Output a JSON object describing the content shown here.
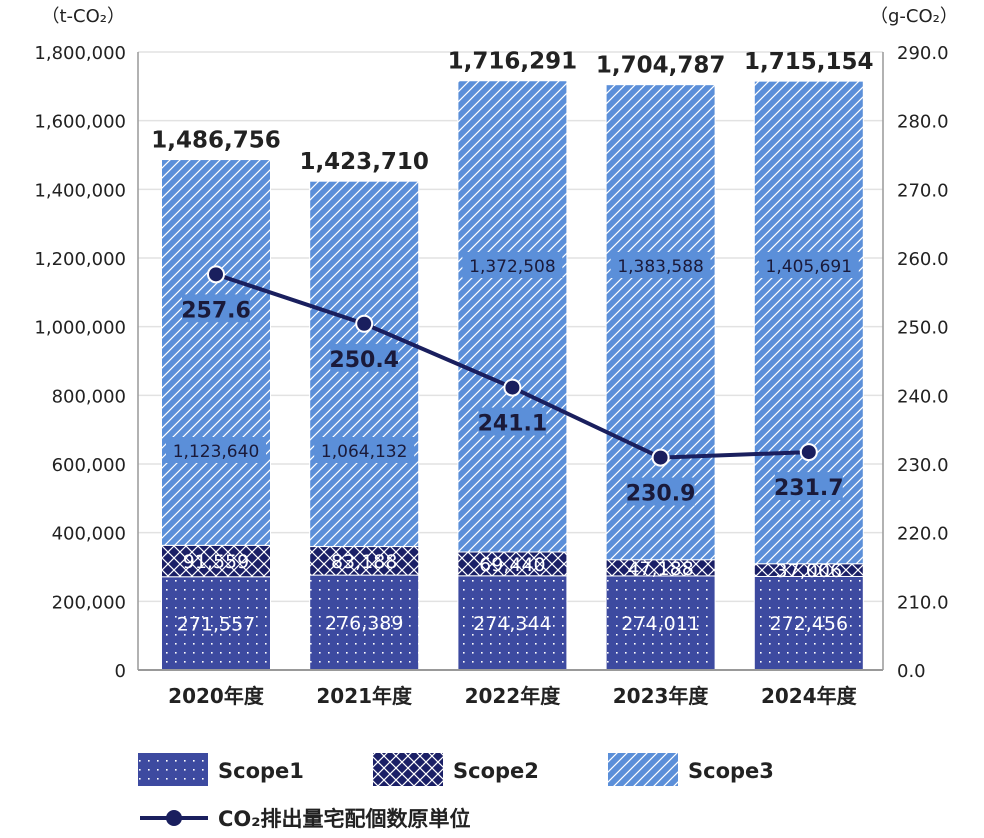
{
  "chart_data": {
    "type": "bar",
    "subtype": "stacked bar with line on secondary axis",
    "categories": [
      "2020年度",
      "2021年度",
      "2022年度",
      "2023年度",
      "2024年度"
    ],
    "series": [
      {
        "name": "Scope1",
        "values": [
          271557,
          276389,
          274344,
          274011,
          272456
        ],
        "color": "#3d4aa0",
        "pattern": "dots"
      },
      {
        "name": "Scope2",
        "values": [
          91559,
          83188,
          69440,
          47188,
          37006
        ],
        "color": "#1a1f66",
        "pattern": "crosshatch"
      },
      {
        "name": "Scope3",
        "values": [
          1123640,
          1064132,
          1372508,
          1383588,
          1405691
        ],
        "color": "#5b8fd9",
        "pattern": "diagonal"
      }
    ],
    "totals": [
      "1,486,756",
      "1,423,710",
      "1,716,291",
      "1,704,787",
      "1,715,154"
    ],
    "line": {
      "name": "CO₂排出量宅配個数原単位",
      "values": [
        257.6,
        250.4,
        241.1,
        230.9,
        231.7
      ],
      "color": "#1a1f5e"
    },
    "left_axis": {
      "label": "（t-CO₂）",
      "ylim": [
        0,
        1800000
      ],
      "ticks": [
        "0",
        "200,000",
        "400,000",
        "600,000",
        "800,000",
        "1,000,000",
        "1,200,000",
        "1,400,000",
        "1,600,000",
        "1,800,000"
      ]
    },
    "right_axis": {
      "label": "（g-CO₂）",
      "ylim": [
        210,
        290
      ],
      "axis_break": "0.0 to 210.0",
      "ticks": [
        "0.0",
        "210.0",
        "220.0",
        "230.0",
        "240.0",
        "250.0",
        "260.0",
        "270.0",
        "280.0",
        "290.0"
      ]
    },
    "grid": true,
    "legend_position": "bottom"
  }
}
